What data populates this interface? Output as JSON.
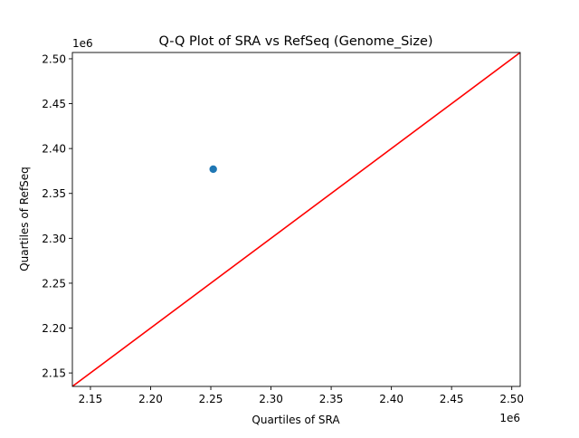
{
  "chart_data": {
    "type": "scatter",
    "title": "Q-Q Plot of SRA vs RefSeq (Genome_Size)",
    "xlabel": "Quartiles of SRA",
    "ylabel": "Quartiles of RefSeq",
    "x_offset_label": "1e6",
    "y_offset_label": "1e6",
    "xlim": [
      2.135,
      2.507
    ],
    "ylim": [
      2.135,
      2.507
    ],
    "x_ticks": [
      2.15,
      2.2,
      2.25,
      2.3,
      2.35,
      2.4,
      2.45,
      2.5
    ],
    "x_tick_labels": [
      "2.15",
      "2.20",
      "2.25",
      "2.30",
      "2.35",
      "2.40",
      "2.45",
      "2.50"
    ],
    "y_ticks": [
      2.15,
      2.2,
      2.25,
      2.3,
      2.35,
      2.4,
      2.45,
      2.5
    ],
    "y_tick_labels": [
      "2.15",
      "2.20",
      "2.25",
      "2.30",
      "2.35",
      "2.40",
      "2.45",
      "2.50"
    ],
    "grid": false,
    "points": [
      {
        "x": 2.252,
        "y": 2.377
      }
    ],
    "reference_line": {
      "x": [
        2.135,
        2.507
      ],
      "y": [
        2.135,
        2.507
      ]
    },
    "colors": {
      "point": "#1f77b4",
      "reference_line": "#ff0000",
      "axes": "#000000"
    }
  }
}
